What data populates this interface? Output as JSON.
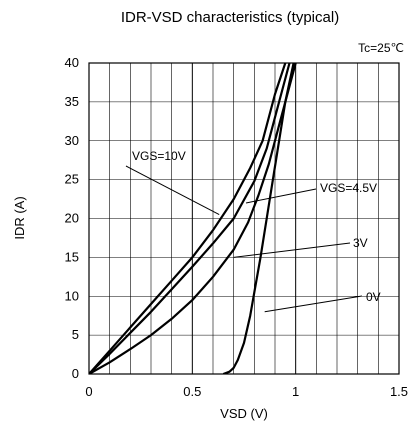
{
  "chart_data": {
    "type": "line",
    "title": "IDR-VSD characteristics (typical)",
    "condition": "Tc=25℃",
    "xlabel": "VSD (V)",
    "ylabel": "IDR (A)",
    "xlim": [
      0,
      1.5
    ],
    "ylim": [
      0,
      40
    ],
    "x_ticks": [
      "0",
      "0.5",
      "1",
      "1.5"
    ],
    "x_tick_values": [
      0,
      0.5,
      1,
      1.5
    ],
    "y_ticks": [
      "0",
      "5",
      "10",
      "15",
      "20",
      "25",
      "30",
      "35",
      "40"
    ],
    "y_tick_values": [
      0,
      5,
      10,
      15,
      20,
      25,
      30,
      35,
      40
    ],
    "grid": true,
    "series": [
      {
        "name": "VGS=10V",
        "x": [
          0,
          0.1,
          0.2,
          0.3,
          0.4,
          0.5,
          0.6,
          0.7,
          0.78,
          0.84,
          0.9,
          0.95
        ],
        "y": [
          0,
          3.0,
          6.0,
          9.0,
          12.0,
          15.0,
          18.5,
          22.5,
          26.5,
          30.0,
          36.0,
          40.0
        ]
      },
      {
        "name": "VGS=4.5V",
        "x": [
          0,
          0.1,
          0.2,
          0.3,
          0.4,
          0.5,
          0.6,
          0.7,
          0.8,
          0.86,
          0.92,
          0.97
        ],
        "y": [
          0,
          2.6,
          5.3,
          8.0,
          10.9,
          13.8,
          16.8,
          20.0,
          24.8,
          29.0,
          35.0,
          40.0
        ]
      },
      {
        "name": "3V",
        "x": [
          0,
          0.1,
          0.2,
          0.3,
          0.4,
          0.5,
          0.6,
          0.7,
          0.77,
          0.82,
          0.87,
          0.92,
          0.96,
          1.0
        ],
        "y": [
          0,
          1.5,
          3.2,
          5.0,
          7.1,
          9.5,
          12.5,
          16.0,
          19.5,
          23.0,
          27.0,
          32.0,
          36.0,
          40.0
        ]
      },
      {
        "name": "0V",
        "x": [
          0.65,
          0.68,
          0.7,
          0.72,
          0.75,
          0.78,
          0.8,
          0.83,
          0.86,
          0.89,
          0.92,
          0.95,
          0.99
        ],
        "y": [
          0,
          0.3,
          0.8,
          1.8,
          4.0,
          7.5,
          10.5,
          15.0,
          20.0,
          25.0,
          30.0,
          35.0,
          40.0
        ]
      }
    ],
    "annotations": [
      {
        "text": "VGS=10V",
        "series": 0,
        "x": 0.63,
        "y": 20.5
      },
      {
        "text": "VGS=4.5V",
        "series": 1,
        "x": 0.76,
        "y": 22.0
      },
      {
        "text": "3V",
        "series": 2,
        "x": 0.7,
        "y": 15.0
      },
      {
        "text": "0V",
        "series": 3,
        "x": 0.85,
        "y": 8.0
      }
    ]
  }
}
